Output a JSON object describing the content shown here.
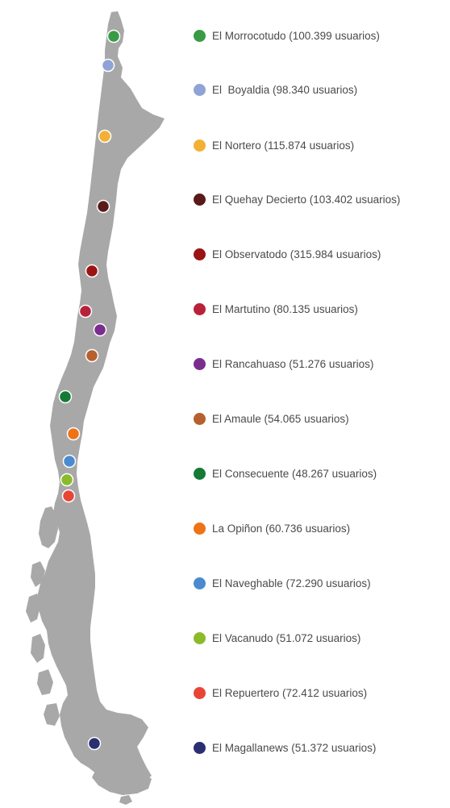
{
  "map": {
    "land_color": "#a8a8a8",
    "markers": [
      {
        "name": "El Morrocotudo",
        "color": "#3a9a45"
      },
      {
        "name": "El  Boyaldia",
        "color": "#8fa3d6"
      },
      {
        "name": "El Nortero",
        "color": "#f2b134"
      },
      {
        "name": "El Quehay Decierto",
        "color": "#5a1a1a"
      },
      {
        "name": "El Observatodo",
        "color": "#9a1414"
      },
      {
        "name": "El Martutino",
        "color": "#b8213a"
      },
      {
        "name": "El Rancahuaso",
        "color": "#7b2d8e"
      },
      {
        "name": "El Amaule",
        "color": "#b5602e"
      },
      {
        "name": "El Consecuente",
        "color": "#157a35"
      },
      {
        "name": "La Opiñon",
        "color": "#ee7316"
      },
      {
        "name": "El Naveghable",
        "color": "#4a8bd0"
      },
      {
        "name": "El Vacanudo",
        "color": "#8bbb2a"
      },
      {
        "name": "El Repuertero",
        "color": "#e84537"
      },
      {
        "name": "El Magallanews",
        "color": "#2a2f72"
      }
    ]
  },
  "legend": {
    "items": [
      {
        "label": "El Morrocotudo (100.399 usuarios)",
        "color": "#3a9a45"
      },
      {
        "label": "El  Boyaldia (98.340 usuarios)",
        "color": "#8fa3d6"
      },
      {
        "label": "El Nortero (115.874 usuarios)",
        "color": "#f2b134"
      },
      {
        "label": "El Quehay Decierto (103.402 usuarios)",
        "color": "#5a1a1a"
      },
      {
        "label": "El Observatodo (315.984 usuarios)",
        "color": "#9a1414"
      },
      {
        "label": "El Martutino (80.135 usuarios)",
        "color": "#b8213a"
      },
      {
        "label": "El Rancahuaso (51.276 usuarios)",
        "color": "#7b2d8e"
      },
      {
        "label": "El Amaule (54.065 usuarios)",
        "color": "#b5602e"
      },
      {
        "label": "El Consecuente (48.267 usuarios)",
        "color": "#157a35"
      },
      {
        "label": "La Opiñon (60.736 usuarios)",
        "color": "#ee7316"
      },
      {
        "label": "El Naveghable (72.290 usuarios)",
        "color": "#4a8bd0"
      },
      {
        "label": "El Vacanudo (51.072 usuarios)",
        "color": "#8bbb2a"
      },
      {
        "label": "El Repuertero (72.412 usuarios)",
        "color": "#e84537"
      },
      {
        "label": "El Magallanews (51.372 usuarios)",
        "color": "#2a2f72"
      }
    ]
  }
}
